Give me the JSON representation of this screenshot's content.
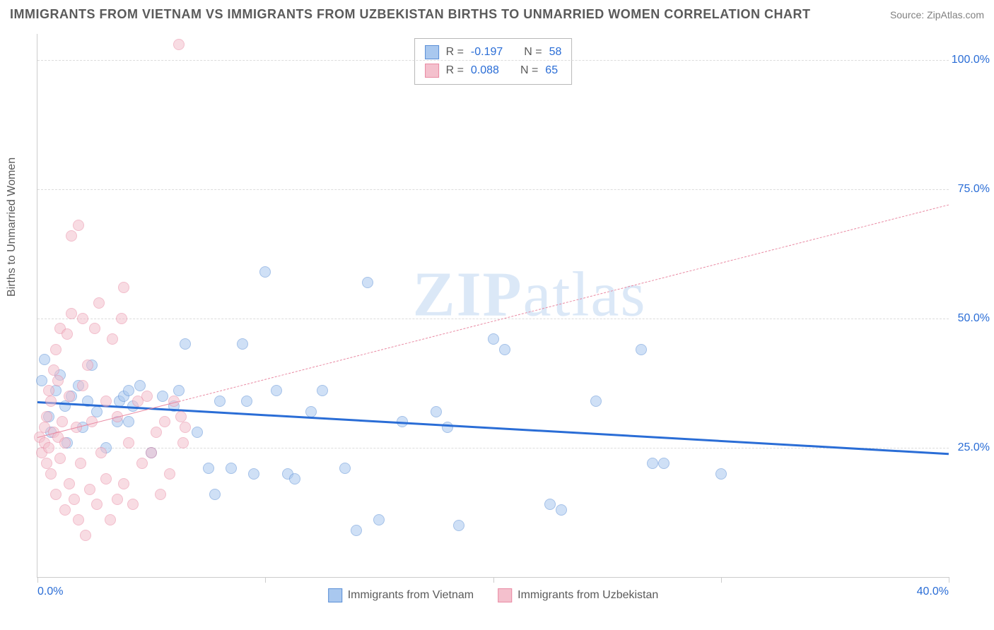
{
  "title": "IMMIGRANTS FROM VIETNAM VS IMMIGRANTS FROM UZBEKISTAN BIRTHS TO UNMARRIED WOMEN CORRELATION CHART",
  "source": "Source: ZipAtlas.com",
  "ylabel": "Births to Unmarried Women",
  "watermark_a": "ZIP",
  "watermark_b": "atlas",
  "chart": {
    "type": "scatter",
    "xlim": [
      0,
      40
    ],
    "ylim": [
      0,
      105
    ],
    "x_ticks": [
      0,
      10,
      20,
      30,
      40
    ],
    "x_tick_labels": [
      "0.0%",
      "",
      "",
      "",
      "40.0%"
    ],
    "y_gridlines": [
      25,
      50,
      75,
      100
    ],
    "y_tick_labels": [
      "25.0%",
      "50.0%",
      "75.0%",
      "100.0%"
    ],
    "grid_color": "#dcdcdc",
    "axis_color": "#cccccc",
    "tick_label_color": "#2a6dd6",
    "background": "#ffffff",
    "marker_radius": 8,
    "marker_opacity": 0.55,
    "series": [
      {
        "name": "Immigrants from Vietnam",
        "fill": "#a9c8ef",
        "stroke": "#5b8fd6",
        "trend_color": "#2a6dd6",
        "trend_width": 3,
        "trend_dash": "solid",
        "trend": {
          "x1": 0,
          "y1": 34,
          "x2": 40,
          "y2": 24
        },
        "R_label": "R =",
        "R_value": "-0.197",
        "N_label": "N =",
        "N_value": "58",
        "points": [
          [
            0.2,
            38
          ],
          [
            0.3,
            42
          ],
          [
            0.5,
            31
          ],
          [
            0.6,
            28
          ],
          [
            0.8,
            36
          ],
          [
            1.0,
            39
          ],
          [
            1.2,
            33
          ],
          [
            1.3,
            26
          ],
          [
            1.5,
            35
          ],
          [
            1.8,
            37
          ],
          [
            2.0,
            29
          ],
          [
            2.2,
            34
          ],
          [
            2.4,
            41
          ],
          [
            2.6,
            32
          ],
          [
            3.0,
            25
          ],
          [
            3.5,
            30
          ],
          [
            3.6,
            34
          ],
          [
            3.8,
            35
          ],
          [
            4.0,
            30
          ],
          [
            4.0,
            36
          ],
          [
            4.2,
            33
          ],
          [
            4.5,
            37
          ],
          [
            5.0,
            24
          ],
          [
            5.5,
            35
          ],
          [
            6.0,
            33
          ],
          [
            6.2,
            36
          ],
          [
            6.5,
            45
          ],
          [
            7.0,
            28
          ],
          [
            7.5,
            21
          ],
          [
            7.8,
            16
          ],
          [
            8.0,
            34
          ],
          [
            8.5,
            21
          ],
          [
            9.0,
            45
          ],
          [
            9.2,
            34
          ],
          [
            9.5,
            20
          ],
          [
            10.0,
            59
          ],
          [
            10.5,
            36
          ],
          [
            11.0,
            20
          ],
          [
            11.3,
            19
          ],
          [
            12.0,
            32
          ],
          [
            12.5,
            36
          ],
          [
            13.5,
            21
          ],
          [
            14.0,
            9
          ],
          [
            14.5,
            57
          ],
          [
            15.0,
            11
          ],
          [
            16.0,
            30
          ],
          [
            17.5,
            32
          ],
          [
            18.0,
            29
          ],
          [
            18.5,
            10
          ],
          [
            20.0,
            46
          ],
          [
            20.5,
            44
          ],
          [
            22.5,
            14
          ],
          [
            23.0,
            13
          ],
          [
            24.5,
            34
          ],
          [
            26.5,
            44
          ],
          [
            27.0,
            22
          ],
          [
            27.5,
            22
          ],
          [
            30.0,
            20
          ]
        ]
      },
      {
        "name": "Immigrants from Uzbekistan",
        "fill": "#f4c0cd",
        "stroke": "#e98aa3",
        "trend_color": "#e98aa3",
        "trend_width": 1.5,
        "trend_dash": "dashed",
        "trend_solid_until_x": 6.2,
        "trend": {
          "x1": 0,
          "y1": 27,
          "x2": 40,
          "y2": 72
        },
        "R_label": "R =",
        "R_value": "0.088",
        "N_label": "N =",
        "N_value": "65",
        "points": [
          [
            0.1,
            27
          ],
          [
            0.2,
            24
          ],
          [
            0.3,
            26
          ],
          [
            0.3,
            29
          ],
          [
            0.4,
            22
          ],
          [
            0.4,
            31
          ],
          [
            0.5,
            25
          ],
          [
            0.5,
            36
          ],
          [
            0.6,
            20
          ],
          [
            0.6,
            34
          ],
          [
            0.7,
            28
          ],
          [
            0.7,
            40
          ],
          [
            0.8,
            16
          ],
          [
            0.8,
            44
          ],
          [
            0.9,
            27
          ],
          [
            0.9,
            38
          ],
          [
            1.0,
            23
          ],
          [
            1.0,
            48
          ],
          [
            1.1,
            30
          ],
          [
            1.2,
            13
          ],
          [
            1.2,
            26
          ],
          [
            1.3,
            47
          ],
          [
            1.4,
            18
          ],
          [
            1.4,
            35
          ],
          [
            1.5,
            51
          ],
          [
            1.5,
            66
          ],
          [
            1.6,
            15
          ],
          [
            1.7,
            29
          ],
          [
            1.8,
            68
          ],
          [
            1.8,
            11
          ],
          [
            1.9,
            22
          ],
          [
            2.0,
            37
          ],
          [
            2.0,
            50
          ],
          [
            2.1,
            8
          ],
          [
            2.2,
            41
          ],
          [
            2.3,
            17
          ],
          [
            2.4,
            30
          ],
          [
            2.5,
            48
          ],
          [
            2.6,
            14
          ],
          [
            2.7,
            53
          ],
          [
            2.8,
            24
          ],
          [
            3.0,
            19
          ],
          [
            3.0,
            34
          ],
          [
            3.2,
            11
          ],
          [
            3.3,
            46
          ],
          [
            3.5,
            15
          ],
          [
            3.5,
            31
          ],
          [
            3.7,
            50
          ],
          [
            3.8,
            56
          ],
          [
            3.8,
            18
          ],
          [
            4.0,
            26
          ],
          [
            4.2,
            14
          ],
          [
            4.4,
            34
          ],
          [
            4.6,
            22
          ],
          [
            4.8,
            35
          ],
          [
            5.0,
            24
          ],
          [
            5.2,
            28
          ],
          [
            5.4,
            16
          ],
          [
            5.6,
            30
          ],
          [
            5.8,
            20
          ],
          [
            6.0,
            34
          ],
          [
            6.2,
            103
          ],
          [
            6.3,
            31
          ],
          [
            6.4,
            26
          ],
          [
            6.5,
            29
          ]
        ]
      }
    ]
  }
}
